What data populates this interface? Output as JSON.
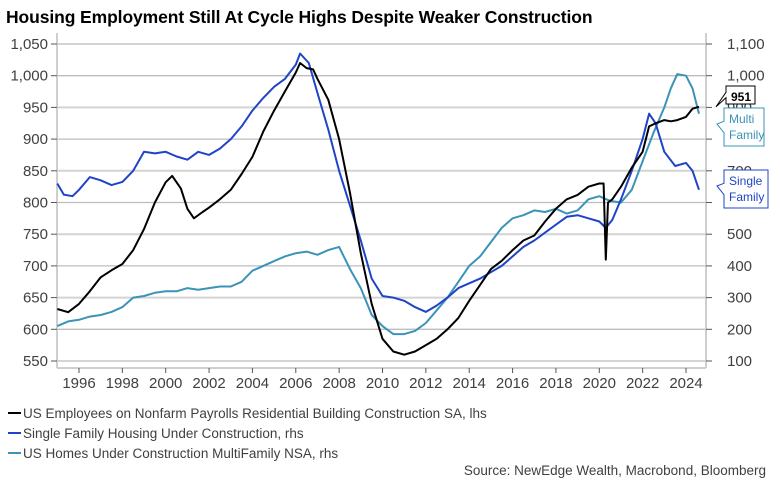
{
  "chart_data": {
    "type": "line",
    "title": "Housing Employment Still At Cycle Highs Despite Weaker Construction",
    "xlabel": "",
    "x_ticks": [
      "1996",
      "1998",
      "2000",
      "2002",
      "2004",
      "2006",
      "2008",
      "2010",
      "2012",
      "2014",
      "2016",
      "2018",
      "2020",
      "2022",
      "2024"
    ],
    "xlim": [
      1995.0,
      2025.3
    ],
    "left_axis": {
      "label": "lhs",
      "ylim": [
        535,
        1060
      ],
      "ticks": [
        "550",
        "600",
        "650",
        "700",
        "750",
        "800",
        "850",
        "900",
        "950",
        "1,000",
        "1,050"
      ],
      "tick_values": [
        550,
        600,
        650,
        700,
        750,
        800,
        850,
        900,
        950,
        1000,
        1050
      ]
    },
    "right_axis": {
      "label": "rhs",
      "ylim": [
        70,
        1120
      ],
      "ticks": [
        "100",
        "200",
        "300",
        "400",
        "500",
        "600",
        "700",
        "800",
        "900",
        "1,000",
        "1,100"
      ],
      "tick_values": [
        100,
        200,
        300,
        400,
        500,
        600,
        700,
        800,
        900,
        1000,
        1100
      ]
    },
    "grid": true,
    "legend_position": "bottom",
    "series": [
      {
        "name": "US Employees on Nonfarm Payrolls Residential Building Construction SA, lhs",
        "axis": "left",
        "color": "#000000",
        "x": [
          1995.0,
          1995.5,
          1996.0,
          1996.5,
          1997.0,
          1997.5,
          1998.0,
          1998.5,
          1999.0,
          1999.5,
          2000.0,
          2000.3,
          2000.7,
          2001.0,
          2001.3,
          2001.7,
          2002.0,
          2002.5,
          2003.0,
          2003.5,
          2004.0,
          2004.5,
          2005.0,
          2005.5,
          2006.0,
          2006.2,
          2006.5,
          2006.8,
          2007.0,
          2007.5,
          2008.0,
          2008.5,
          2009.0,
          2009.5,
          2010.0,
          2010.5,
          2011.0,
          2011.5,
          2012.0,
          2012.5,
          2013.0,
          2013.5,
          2014.0,
          2014.5,
          2015.0,
          2015.5,
          2016.0,
          2016.5,
          2017.0,
          2017.5,
          2018.0,
          2018.5,
          2019.0,
          2019.5,
          2020.0,
          2020.2,
          2020.3,
          2020.4,
          2020.6,
          2021.0,
          2021.5,
          2022.0,
          2022.3,
          2022.6,
          2023.0,
          2023.3,
          2023.6,
          2024.0,
          2024.3,
          2024.6
        ],
        "values": [
          632,
          627,
          640,
          660,
          682,
          693,
          703,
          725,
          758,
          800,
          832,
          842,
          822,
          790,
          775,
          785,
          792,
          805,
          820,
          845,
          872,
          912,
          945,
          975,
          1005,
          1020,
          1012,
          1010,
          995,
          962,
          900,
          815,
          720,
          640,
          585,
          565,
          560,
          565,
          575,
          585,
          600,
          618,
          645,
          670,
          695,
          708,
          725,
          740,
          748,
          770,
          790,
          805,
          812,
          825,
          830,
          830,
          710,
          800,
          805,
          825,
          855,
          880,
          920,
          925,
          930,
          928,
          930,
          935,
          948,
          951
        ]
      },
      {
        "name": "Single Family Housing Under Construction, rhs",
        "axis": "right",
        "color": "#1f44c8",
        "x": [
          1995.0,
          1995.3,
          1995.7,
          1996.0,
          1996.5,
          1997.0,
          1997.5,
          1998.0,
          1998.5,
          1999.0,
          1999.5,
          2000.0,
          2000.5,
          2001.0,
          2001.5,
          2002.0,
          2002.5,
          2003.0,
          2003.5,
          2004.0,
          2004.5,
          2005.0,
          2005.5,
          2006.0,
          2006.2,
          2006.6,
          2007.0,
          2007.5,
          2008.0,
          2008.5,
          2009.0,
          2009.5,
          2010.0,
          2010.5,
          2011.0,
          2011.5,
          2012.0,
          2012.5,
          2013.0,
          2013.5,
          2014.0,
          2014.5,
          2015.0,
          2015.5,
          2016.0,
          2016.5,
          2017.0,
          2017.5,
          2018.0,
          2018.5,
          2019.0,
          2019.5,
          2020.0,
          2020.3,
          2020.6,
          2021.0,
          2021.5,
          2022.0,
          2022.3,
          2022.6,
          2023.0,
          2023.5,
          2024.0,
          2024.3,
          2024.6
        ],
        "values": [
          660,
          625,
          620,
          640,
          680,
          670,
          655,
          665,
          700,
          760,
          755,
          760,
          745,
          735,
          760,
          750,
          770,
          800,
          840,
          890,
          930,
          965,
          990,
          1035,
          1070,
          1040,
          945,
          830,
          700,
          590,
          480,
          360,
          305,
          300,
          290,
          270,
          255,
          275,
          300,
          330,
          345,
          360,
          380,
          400,
          430,
          460,
          480,
          505,
          530,
          555,
          560,
          550,
          540,
          520,
          545,
          610,
          700,
          800,
          880,
          850,
          760,
          715,
          725,
          700,
          640
        ]
      },
      {
        "name": "US Homes Under Construction MultiFamily NSA, rhs",
        "axis": "right",
        "color": "#3b93b8",
        "x": [
          1995.0,
          1995.5,
          1996.0,
          1996.5,
          1997.0,
          1997.5,
          1998.0,
          1998.5,
          1999.0,
          1999.5,
          2000.0,
          2000.5,
          2001.0,
          2001.5,
          2002.0,
          2002.5,
          2003.0,
          2003.5,
          2004.0,
          2004.5,
          2005.0,
          2005.5,
          2006.0,
          2006.5,
          2007.0,
          2007.5,
          2008.0,
          2008.5,
          2009.0,
          2009.5,
          2010.0,
          2010.5,
          2011.0,
          2011.5,
          2012.0,
          2012.5,
          2013.0,
          2013.5,
          2014.0,
          2014.5,
          2015.0,
          2015.5,
          2016.0,
          2016.5,
          2017.0,
          2017.5,
          2018.0,
          2018.5,
          2019.0,
          2019.5,
          2020.0,
          2020.5,
          2021.0,
          2021.5,
          2022.0,
          2022.5,
          2023.0,
          2023.3,
          2023.6,
          2024.0,
          2024.3,
          2024.6
        ],
        "values": [
          210,
          225,
          230,
          240,
          245,
          255,
          270,
          300,
          305,
          315,
          320,
          320,
          330,
          325,
          330,
          335,
          335,
          350,
          385,
          400,
          415,
          430,
          440,
          445,
          435,
          450,
          460,
          390,
          330,
          245,
          210,
          185,
          185,
          195,
          220,
          260,
          300,
          350,
          400,
          430,
          475,
          520,
          550,
          560,
          575,
          570,
          580,
          565,
          575,
          610,
          620,
          605,
          600,
          640,
          730,
          820,
          900,
          960,
          1005,
          1000,
          960,
          880
        ]
      }
    ],
    "annotations": [
      {
        "text": "951",
        "series": "US Employees on Nonfarm Payrolls Residential Building Construction SA, lhs",
        "style": "value-callout"
      },
      {
        "text": "Multi Family",
        "series": "US Homes Under Construction MultiFamily NSA, rhs",
        "style": "label-callout"
      },
      {
        "text": "Single Family",
        "series": "Single Family Housing Under Construction, rhs",
        "style": "label-callout"
      }
    ],
    "source": "Source: NewEdge Wealth, Macrobond, Bloomberg"
  }
}
